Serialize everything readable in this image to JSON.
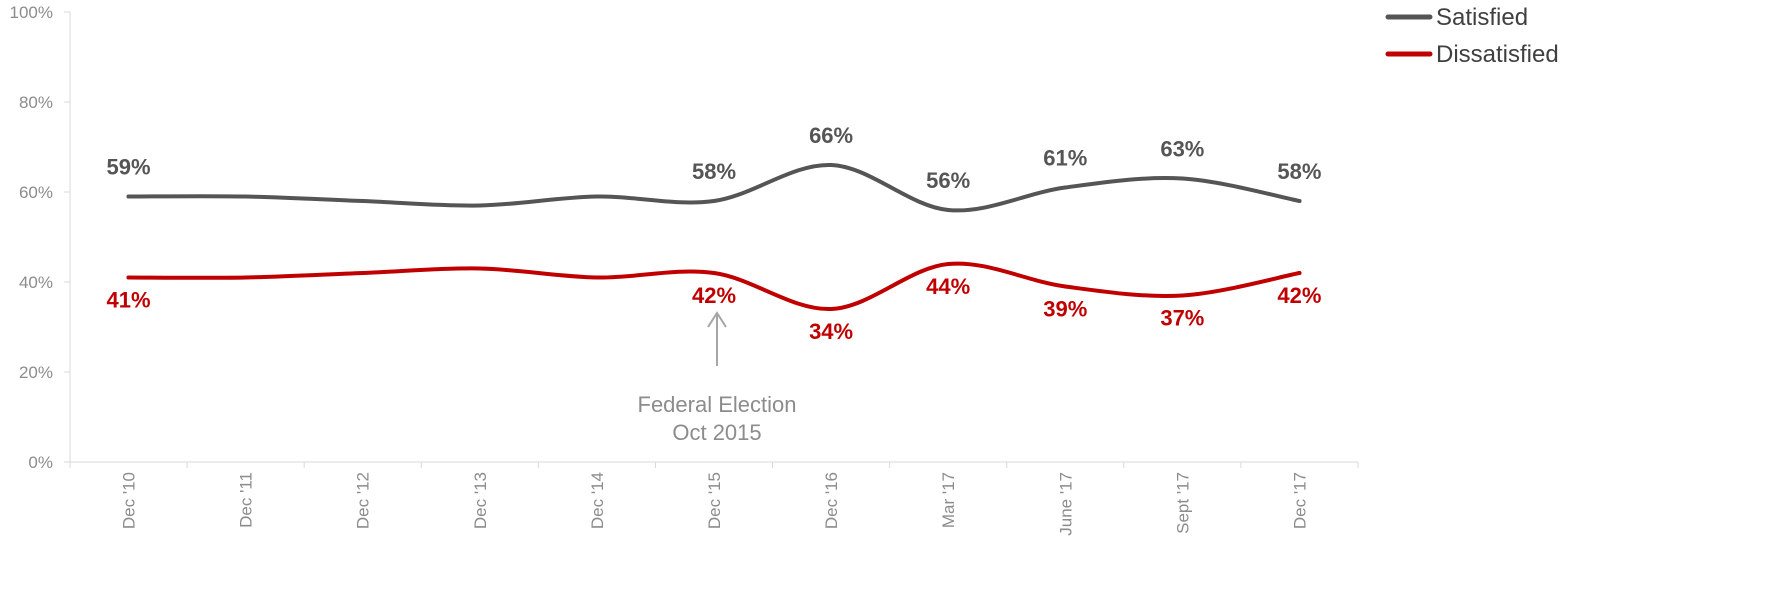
{
  "chart_data": {
    "type": "line",
    "categories": [
      "Dec '10",
      "Dec '11",
      "Dec '12",
      "Dec '13",
      "Dec '14",
      "Dec '15",
      "Dec '16",
      "Mar '17",
      "June '17",
      "Sept '17",
      "Dec '17"
    ],
    "series": [
      {
        "name": "Satisfied",
        "color": "#555555",
        "values": [
          59,
          59,
          58,
          57,
          59,
          58,
          66,
          56,
          61,
          63,
          58
        ],
        "labels": [
          "59%",
          null,
          null,
          null,
          null,
          "58%",
          "66%",
          "56%",
          "61%",
          "63%",
          "58%"
        ],
        "label_position": "above"
      },
      {
        "name": "Dissatisfied",
        "color": "#c00000",
        "values": [
          41,
          41,
          42,
          43,
          41,
          42,
          34,
          44,
          39,
          37,
          42
        ],
        "labels": [
          "41%",
          null,
          null,
          null,
          null,
          "42%",
          "34%",
          "44%",
          "39%",
          "37%",
          "42%"
        ],
        "label_position": "below"
      }
    ],
    "ylim": [
      0,
      100
    ],
    "yticks": [
      0,
      20,
      40,
      60,
      80,
      100
    ],
    "ytick_labels": [
      "0%",
      "20%",
      "40%",
      "60%",
      "80%",
      "100%"
    ],
    "grid": false,
    "legend_position": "top-right",
    "annotation": {
      "category": "Dec '15",
      "lines": [
        "Federal Election",
        "Oct 2015"
      ],
      "color": "#a6a6a6"
    },
    "title": "",
    "xlabel": "",
    "ylabel": ""
  }
}
